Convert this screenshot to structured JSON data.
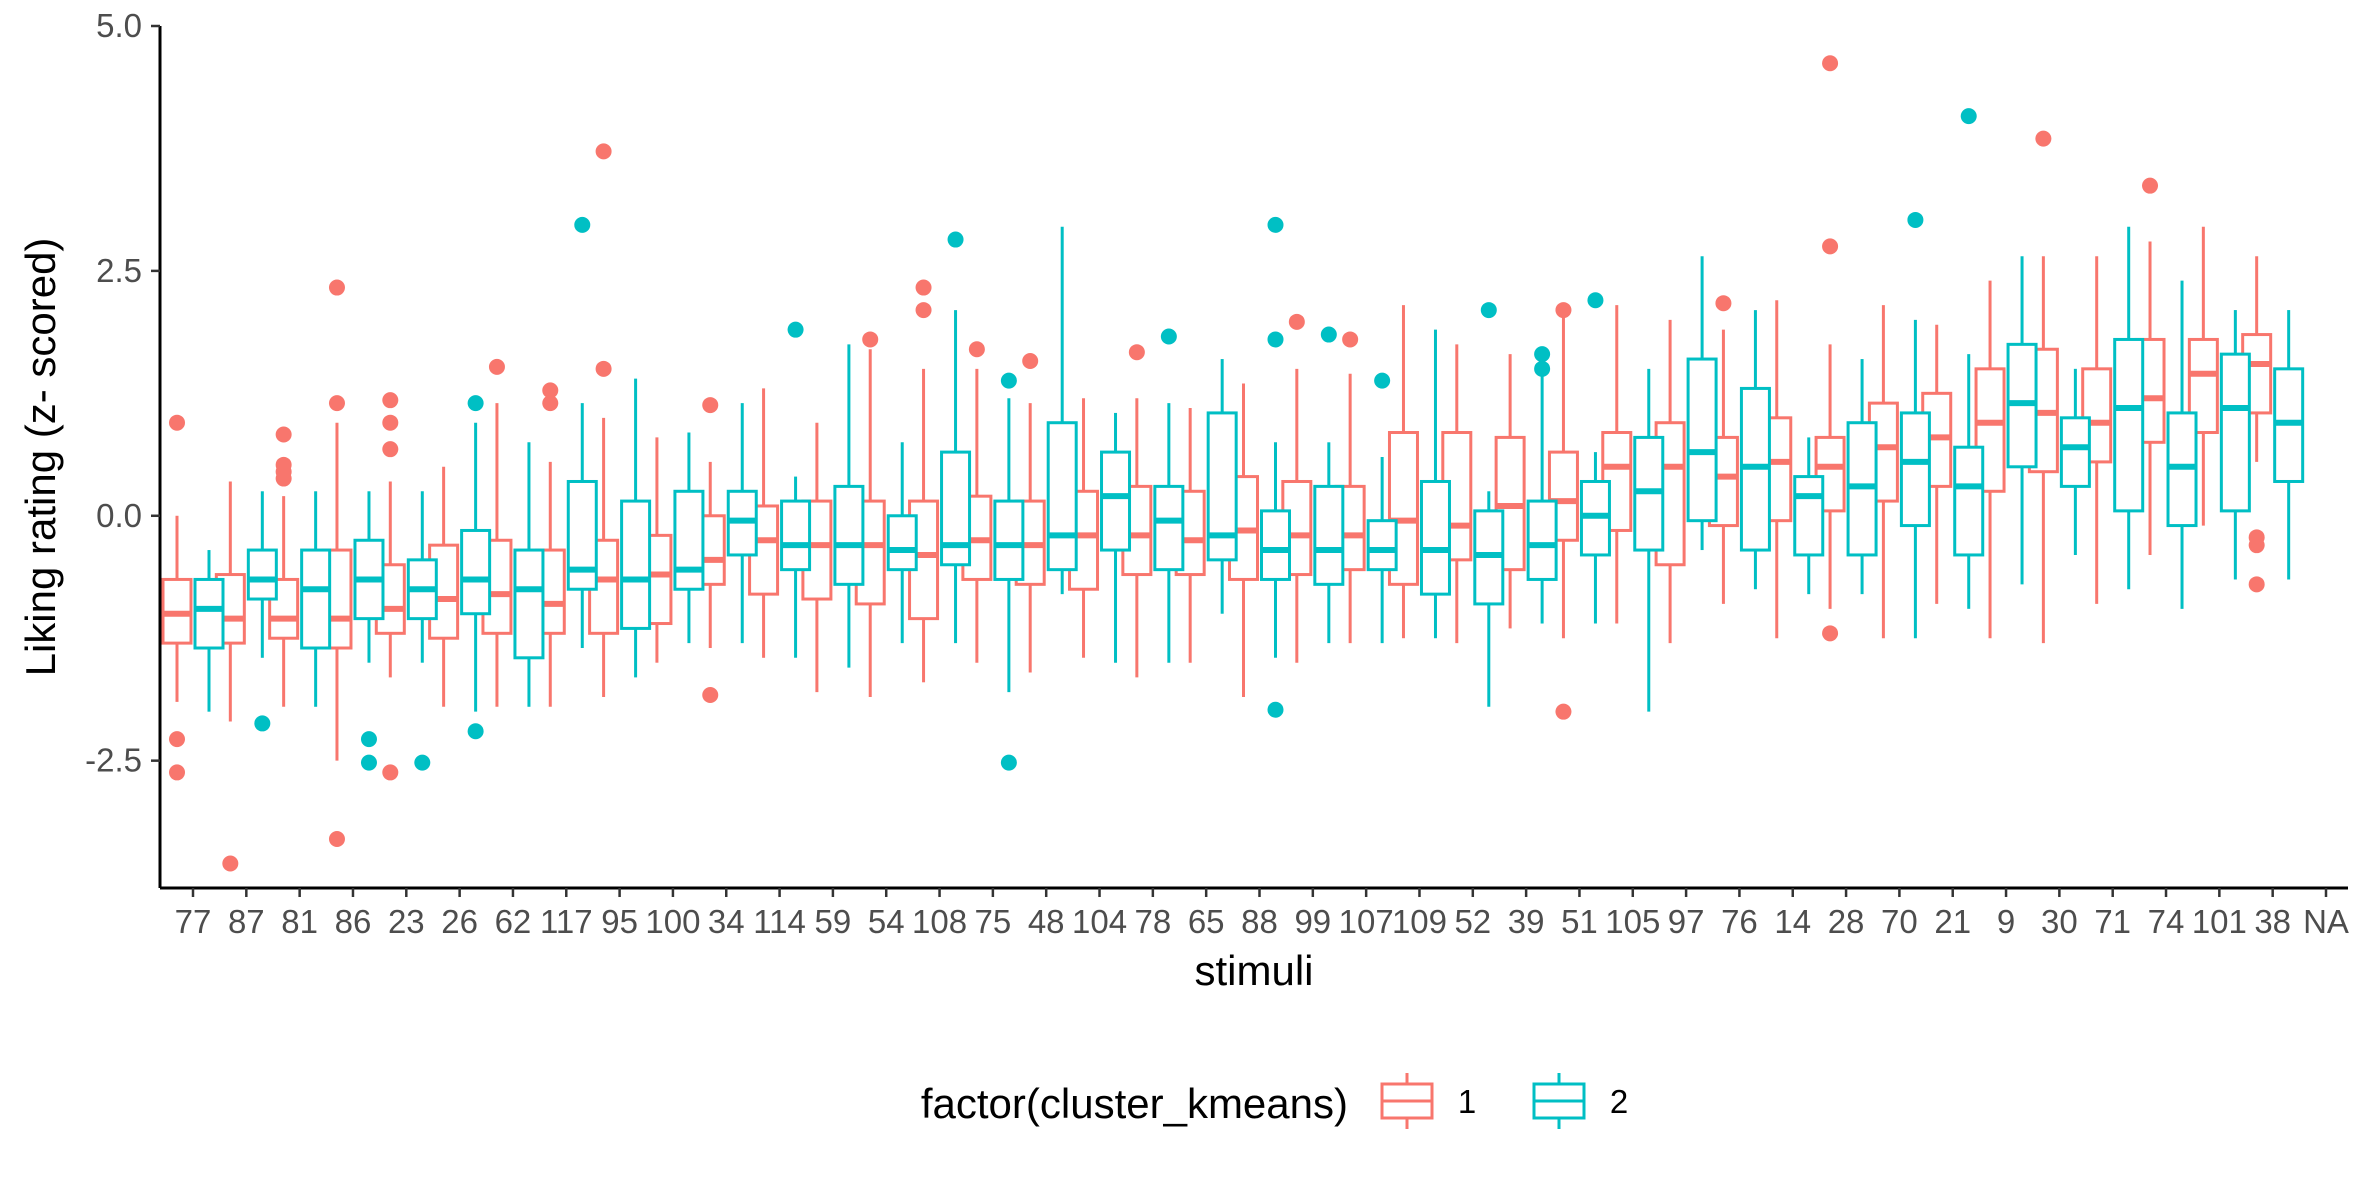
{
  "chart_data": {
    "type": "boxplot",
    "xlabel": "stimuli",
    "ylabel": "Liking rating (z- scored)",
    "ylim": [
      -3.8,
      5.0
    ],
    "yticks": [
      5.0,
      2.5,
      0.0,
      -2.5
    ],
    "ytick_labels": [
      "5.0",
      "2.5",
      "0.0",
      "-2.5"
    ],
    "categories": [
      "77",
      "87",
      "81",
      "86",
      "23",
      "26",
      "62",
      "117",
      "95",
      "100",
      "34",
      "114",
      "59",
      "54",
      "108",
      "75",
      "48",
      "104",
      "78",
      "65",
      "88",
      "99",
      "107",
      "109",
      "52",
      "39",
      "51",
      "105",
      "97",
      "76",
      "14",
      "28",
      "70",
      "21",
      "9",
      "30",
      "71",
      "74",
      "101",
      "38",
      "NA"
    ],
    "legend": {
      "title": "factor(cluster_kmeans)",
      "position": "bottom"
    },
    "grid": false,
    "series": [
      {
        "name": "1",
        "color": "#F8766D",
        "boxes": [
          {
            "category": "77",
            "whislo": -1.9,
            "q1": -1.3,
            "med": -1.0,
            "q3": -0.65,
            "whishi": 0.0,
            "outliers": [
              0.95,
              -2.28,
              -2.62
            ]
          },
          {
            "category": "87",
            "whislo": -2.1,
            "q1": -1.3,
            "med": -1.05,
            "q3": -0.6,
            "whishi": 0.35,
            "outliers": [
              -3.55
            ]
          },
          {
            "category": "81",
            "whislo": -1.95,
            "q1": -1.25,
            "med": -1.05,
            "q3": -0.65,
            "whishi": 0.2,
            "outliers": [
              0.83,
              0.52,
              0.45,
              0.38
            ]
          },
          {
            "category": "86",
            "whislo": -2.5,
            "q1": -1.35,
            "med": -1.05,
            "q3": -0.35,
            "whishi": 0.95,
            "outliers": [
              2.33,
              1.15,
              -3.3
            ]
          },
          {
            "category": "23",
            "whislo": -1.65,
            "q1": -1.2,
            "med": -0.95,
            "q3": -0.5,
            "whishi": 0.35,
            "outliers": [
              1.18,
              0.95,
              0.68,
              -2.62
            ]
          },
          {
            "category": "26",
            "whislo": -1.95,
            "q1": -1.25,
            "med": -0.85,
            "q3": -0.3,
            "whishi": 0.5,
            "outliers": []
          },
          {
            "category": "62",
            "whislo": -1.95,
            "q1": -1.2,
            "med": -0.8,
            "q3": -0.25,
            "whishi": 1.15,
            "outliers": [
              1.52
            ]
          },
          {
            "category": "117",
            "whislo": -1.95,
            "q1": -1.2,
            "med": -0.9,
            "q3": -0.35,
            "whishi": 0.55,
            "outliers": [
              1.28,
              1.15
            ]
          },
          {
            "category": "95",
            "whislo": -1.85,
            "q1": -1.2,
            "med": -0.65,
            "q3": -0.25,
            "whishi": 1.0,
            "outliers": [
              3.72,
              1.5
            ]
          },
          {
            "category": "100",
            "whislo": -1.5,
            "q1": -1.1,
            "med": -0.6,
            "q3": -0.2,
            "whishi": 0.8,
            "outliers": []
          },
          {
            "category": "34",
            "whislo": -1.35,
            "q1": -0.7,
            "med": -0.45,
            "q3": 0.0,
            "whishi": 0.55,
            "outliers": [
              1.13,
              -1.83
            ]
          },
          {
            "category": "114",
            "whislo": -1.45,
            "q1": -0.8,
            "med": -0.25,
            "q3": 0.1,
            "whishi": 1.3,
            "outliers": []
          },
          {
            "category": "59",
            "whislo": -1.8,
            "q1": -0.85,
            "med": -0.3,
            "q3": 0.15,
            "whishi": 0.95,
            "outliers": []
          },
          {
            "category": "54",
            "whislo": -1.85,
            "q1": -0.9,
            "med": -0.3,
            "q3": 0.15,
            "whishi": 1.7,
            "outliers": [
              1.8
            ]
          },
          {
            "category": "108",
            "whislo": -1.7,
            "q1": -1.05,
            "med": -0.4,
            "q3": 0.15,
            "whishi": 1.5,
            "outliers": [
              2.33,
              2.1
            ]
          },
          {
            "category": "75",
            "whislo": -1.5,
            "q1": -0.65,
            "med": -0.25,
            "q3": 0.2,
            "whishi": 1.5,
            "outliers": [
              1.7
            ]
          },
          {
            "category": "48",
            "whislo": -1.6,
            "q1": -0.7,
            "med": -0.3,
            "q3": 0.15,
            "whishi": 1.15,
            "outliers": [
              1.58
            ]
          },
          {
            "category": "104",
            "whislo": -1.45,
            "q1": -0.75,
            "med": -0.2,
            "q3": 0.25,
            "whishi": 1.2,
            "outliers": []
          },
          {
            "category": "78",
            "whislo": -1.65,
            "q1": -0.6,
            "med": -0.2,
            "q3": 0.3,
            "whishi": 1.2,
            "outliers": [
              1.67
            ]
          },
          {
            "category": "65",
            "whislo": -1.5,
            "q1": -0.6,
            "med": -0.25,
            "q3": 0.25,
            "whishi": 1.1,
            "outliers": []
          },
          {
            "category": "88",
            "whislo": -1.85,
            "q1": -0.65,
            "med": -0.15,
            "q3": 0.4,
            "whishi": 1.35,
            "outliers": []
          },
          {
            "category": "99",
            "whislo": -1.5,
            "q1": -0.6,
            "med": -0.2,
            "q3": 0.35,
            "whishi": 1.5,
            "outliers": [
              1.98
            ]
          },
          {
            "category": "107",
            "whislo": -1.3,
            "q1": -0.55,
            "med": -0.2,
            "q3": 0.3,
            "whishi": 1.45,
            "outliers": [
              1.8
            ]
          },
          {
            "category": "109",
            "whislo": -1.25,
            "q1": -0.7,
            "med": -0.05,
            "q3": 0.85,
            "whishi": 2.15,
            "outliers": []
          },
          {
            "category": "52",
            "whislo": -1.3,
            "q1": -0.45,
            "med": -0.1,
            "q3": 0.85,
            "whishi": 1.75,
            "outliers": []
          },
          {
            "category": "39",
            "whislo": -1.15,
            "q1": -0.55,
            "med": 0.1,
            "q3": 0.8,
            "whishi": 1.65,
            "outliers": []
          },
          {
            "category": "51",
            "whislo": -1.25,
            "q1": -0.25,
            "med": 0.15,
            "q3": 0.65,
            "whishi": 2.05,
            "outliers": [
              2.1,
              -2.0
            ]
          },
          {
            "category": "105",
            "whislo": -1.1,
            "q1": -0.15,
            "med": 0.5,
            "q3": 0.85,
            "whishi": 2.15,
            "outliers": []
          },
          {
            "category": "97",
            "whislo": -1.3,
            "q1": -0.5,
            "med": 0.5,
            "q3": 0.95,
            "whishi": 2.0,
            "outliers": []
          },
          {
            "category": "76",
            "whislo": -0.9,
            "q1": -0.1,
            "med": 0.4,
            "q3": 0.8,
            "whishi": 1.9,
            "outliers": [
              2.17
            ]
          },
          {
            "category": "14",
            "whislo": -1.25,
            "q1": -0.05,
            "med": 0.55,
            "q3": 1.0,
            "whishi": 2.2,
            "outliers": []
          },
          {
            "category": "28",
            "whislo": -0.95,
            "q1": 0.05,
            "med": 0.5,
            "q3": 0.8,
            "whishi": 1.75,
            "outliers": [
              4.62,
              2.75,
              -1.2
            ]
          },
          {
            "category": "70",
            "whislo": -1.25,
            "q1": 0.15,
            "med": 0.7,
            "q3": 1.15,
            "whishi": 2.15,
            "outliers": []
          },
          {
            "category": "21",
            "whislo": -0.9,
            "q1": 0.3,
            "med": 0.8,
            "q3": 1.25,
            "whishi": 1.95,
            "outliers": []
          },
          {
            "category": "9",
            "whislo": -1.25,
            "q1": 0.25,
            "med": 0.95,
            "q3": 1.5,
            "whishi": 2.4,
            "outliers": []
          },
          {
            "category": "30",
            "whislo": -1.3,
            "q1": 0.45,
            "med": 1.05,
            "q3": 1.7,
            "whishi": 2.65,
            "outliers": [
              3.85
            ]
          },
          {
            "category": "71",
            "whislo": -0.9,
            "q1": 0.55,
            "med": 0.95,
            "q3": 1.5,
            "whishi": 2.65,
            "outliers": []
          },
          {
            "category": "74",
            "whislo": -0.4,
            "q1": 0.75,
            "med": 1.2,
            "q3": 1.8,
            "whishi": 2.8,
            "outliers": [
              3.37
            ]
          },
          {
            "category": "101",
            "whislo": -0.1,
            "q1": 0.85,
            "med": 1.45,
            "q3": 1.8,
            "whishi": 2.95,
            "outliers": []
          },
          {
            "category": "38",
            "whislo": 0.55,
            "q1": 1.05,
            "med": 1.55,
            "q3": 1.85,
            "whishi": 2.65,
            "outliers": [
              -0.22,
              -0.3,
              -0.7
            ]
          }
        ]
      },
      {
        "name": "2",
        "color": "#00BFC4",
        "boxes": [
          {
            "category": "77",
            "whislo": -2.0,
            "q1": -1.35,
            "med": -0.95,
            "q3": -0.65,
            "whishi": -0.35,
            "outliers": []
          },
          {
            "category": "87",
            "whislo": -1.45,
            "q1": -0.85,
            "med": -0.65,
            "q3": -0.35,
            "whishi": 0.25,
            "outliers": [
              -2.12
            ]
          },
          {
            "category": "81",
            "whislo": -1.95,
            "q1": -1.35,
            "med": -0.75,
            "q3": -0.35,
            "whishi": 0.25,
            "outliers": []
          },
          {
            "category": "86",
            "whislo": -1.5,
            "q1": -1.05,
            "med": -0.65,
            "q3": -0.25,
            "whishi": 0.25,
            "outliers": [
              -2.28,
              -2.52
            ]
          },
          {
            "category": "23",
            "whislo": -1.5,
            "q1": -1.05,
            "med": -0.75,
            "q3": -0.45,
            "whishi": 0.25,
            "outliers": [
              -2.52
            ]
          },
          {
            "category": "26",
            "whislo": -2.0,
            "q1": -1.0,
            "med": -0.65,
            "q3": -0.15,
            "whishi": 0.95,
            "outliers": [
              1.15,
              -2.2
            ]
          },
          {
            "category": "62",
            "whislo": -1.95,
            "q1": -1.45,
            "med": -0.75,
            "q3": -0.35,
            "whishi": 0.75,
            "outliers": []
          },
          {
            "category": "117",
            "whislo": -1.35,
            "q1": -0.75,
            "med": -0.55,
            "q3": 0.35,
            "whishi": 1.15,
            "outliers": [
              2.97
            ]
          },
          {
            "category": "95",
            "whislo": -1.65,
            "q1": -1.15,
            "med": -0.65,
            "q3": 0.15,
            "whishi": 1.4,
            "outliers": []
          },
          {
            "category": "100",
            "whislo": -1.3,
            "q1": -0.75,
            "med": -0.55,
            "q3": 0.25,
            "whishi": 0.85,
            "outliers": []
          },
          {
            "category": "34",
            "whislo": -1.3,
            "q1": -0.4,
            "med": -0.05,
            "q3": 0.25,
            "whishi": 1.15,
            "outliers": []
          },
          {
            "category": "114",
            "whislo": -1.45,
            "q1": -0.55,
            "med": -0.3,
            "q3": 0.15,
            "whishi": 0.4,
            "outliers": [
              1.9
            ]
          },
          {
            "category": "59",
            "whislo": -1.55,
            "q1": -0.7,
            "med": -0.3,
            "q3": 0.3,
            "whishi": 1.75,
            "outliers": []
          },
          {
            "category": "54",
            "whislo": -1.3,
            "q1": -0.55,
            "med": -0.35,
            "q3": 0.0,
            "whishi": 0.75,
            "outliers": []
          },
          {
            "category": "108",
            "whislo": -1.3,
            "q1": -0.5,
            "med": -0.3,
            "q3": 0.65,
            "whishi": 2.1,
            "outliers": [
              2.82
            ]
          },
          {
            "category": "75",
            "whislo": -1.8,
            "q1": -0.65,
            "med": -0.3,
            "q3": 0.15,
            "whishi": 1.2,
            "outliers": [
              1.38,
              -2.52
            ]
          },
          {
            "category": "48",
            "whislo": -0.8,
            "q1": -0.55,
            "med": -0.2,
            "q3": 0.95,
            "whishi": 2.95,
            "outliers": []
          },
          {
            "category": "104",
            "whislo": -1.5,
            "q1": -0.35,
            "med": 0.2,
            "q3": 0.65,
            "whishi": 1.05,
            "outliers": []
          },
          {
            "category": "78",
            "whislo": -1.5,
            "q1": -0.55,
            "med": -0.05,
            "q3": 0.3,
            "whishi": 1.15,
            "outliers": [
              1.83
            ]
          },
          {
            "category": "65",
            "whislo": -1.0,
            "q1": -0.45,
            "med": -0.2,
            "q3": 1.05,
            "whishi": 1.6,
            "outliers": []
          },
          {
            "category": "88",
            "whislo": -1.45,
            "q1": -0.65,
            "med": -0.35,
            "q3": 0.05,
            "whishi": 0.75,
            "outliers": [
              2.97,
              1.8,
              -1.98
            ]
          },
          {
            "category": "99",
            "whislo": -1.3,
            "q1": -0.7,
            "med": -0.35,
            "q3": 0.3,
            "whishi": 0.75,
            "outliers": [
              1.85
            ]
          },
          {
            "category": "107",
            "whislo": -1.3,
            "q1": -0.55,
            "med": -0.35,
            "q3": -0.05,
            "whishi": 0.6,
            "outliers": [
              1.38
            ]
          },
          {
            "category": "109",
            "whislo": -1.25,
            "q1": -0.8,
            "med": -0.35,
            "q3": 0.35,
            "whishi": 1.9,
            "outliers": []
          },
          {
            "category": "52",
            "whislo": -1.95,
            "q1": -0.9,
            "med": -0.4,
            "q3": 0.05,
            "whishi": 0.25,
            "outliers": [
              2.1
            ]
          },
          {
            "category": "39",
            "whislo": -1.1,
            "q1": -0.65,
            "med": -0.3,
            "q3": 0.15,
            "whishi": 1.45,
            "outliers": [
              1.65,
              1.5
            ]
          },
          {
            "category": "51",
            "whislo": -1.1,
            "q1": -0.4,
            "med": 0.0,
            "q3": 0.35,
            "whishi": 0.65,
            "outliers": [
              2.2
            ]
          },
          {
            "category": "105",
            "whislo": -2.0,
            "q1": -0.35,
            "med": 0.25,
            "q3": 0.8,
            "whishi": 1.5,
            "outliers": []
          },
          {
            "category": "97",
            "whislo": -0.35,
            "q1": -0.05,
            "med": 0.65,
            "q3": 1.6,
            "whishi": 2.65,
            "outliers": []
          },
          {
            "category": "76",
            "whislo": -0.75,
            "q1": -0.35,
            "med": 0.5,
            "q3": 1.3,
            "whishi": 2.1,
            "outliers": []
          },
          {
            "category": "14",
            "whislo": -0.8,
            "q1": -0.4,
            "med": 0.2,
            "q3": 0.4,
            "whishi": 0.8,
            "outliers": []
          },
          {
            "category": "28",
            "whislo": -0.8,
            "q1": -0.4,
            "med": 0.3,
            "q3": 0.95,
            "whishi": 1.6,
            "outliers": []
          },
          {
            "category": "70",
            "whislo": -1.25,
            "q1": -0.1,
            "med": 0.55,
            "q3": 1.05,
            "whishi": 2.0,
            "outliers": [
              3.02
            ]
          },
          {
            "category": "21",
            "whislo": -0.95,
            "q1": -0.4,
            "med": 0.3,
            "q3": 0.7,
            "whishi": 1.65,
            "outliers": [
              4.08
            ]
          },
          {
            "category": "9",
            "whislo": -0.7,
            "q1": 0.5,
            "med": 1.15,
            "q3": 1.75,
            "whishi": 2.65,
            "outliers": []
          },
          {
            "category": "30",
            "whislo": -0.4,
            "q1": 0.3,
            "med": 0.7,
            "q3": 1.0,
            "whishi": 1.5,
            "outliers": []
          },
          {
            "category": "71",
            "whislo": -0.75,
            "q1": 0.05,
            "med": 1.1,
            "q3": 1.8,
            "whishi": 2.95,
            "outliers": []
          },
          {
            "category": "74",
            "whislo": -0.95,
            "q1": -0.1,
            "med": 0.5,
            "q3": 1.05,
            "whishi": 2.4,
            "outliers": []
          },
          {
            "category": "101",
            "whislo": -0.65,
            "q1": 0.05,
            "med": 1.1,
            "q3": 1.65,
            "whishi": 2.1,
            "outliers": []
          },
          {
            "category": "38",
            "whislo": -0.65,
            "q1": 0.35,
            "med": 0.95,
            "q3": 1.5,
            "whishi": 2.1,
            "outliers": []
          }
        ]
      }
    ]
  }
}
